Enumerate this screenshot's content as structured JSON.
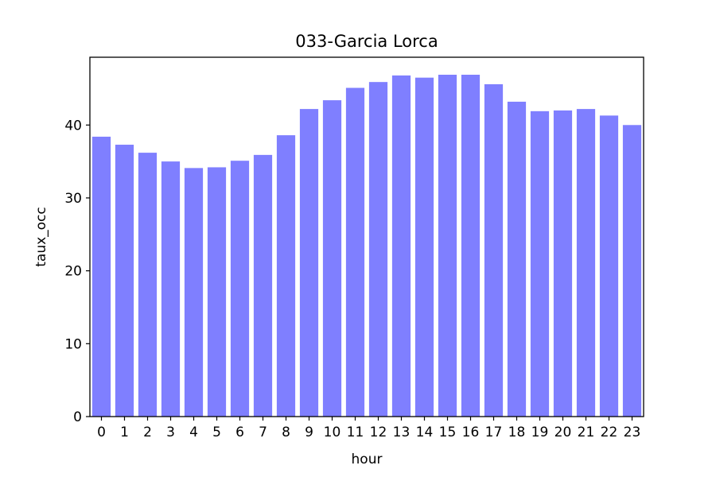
{
  "chart_data": {
    "type": "bar",
    "title": "033-Garcia Lorca",
    "xlabel": "hour",
    "ylabel": "taux_occ",
    "categories": [
      "0",
      "1",
      "2",
      "3",
      "4",
      "5",
      "6",
      "7",
      "8",
      "9",
      "10",
      "11",
      "12",
      "13",
      "14",
      "15",
      "16",
      "17",
      "18",
      "19",
      "20",
      "21",
      "22",
      "23"
    ],
    "values": [
      38.4,
      37.3,
      36.2,
      35.0,
      34.1,
      34.2,
      35.1,
      35.9,
      38.6,
      42.2,
      43.4,
      45.1,
      45.9,
      46.8,
      46.5,
      46.9,
      46.9,
      45.6,
      43.2,
      41.9,
      42.0,
      42.2,
      41.3,
      40.0
    ],
    "yticks": [
      "0",
      "10",
      "20",
      "30",
      "40"
    ],
    "ylim": [
      0,
      49.3
    ],
    "bar_color": "#7f7fff",
    "grid": false
  }
}
